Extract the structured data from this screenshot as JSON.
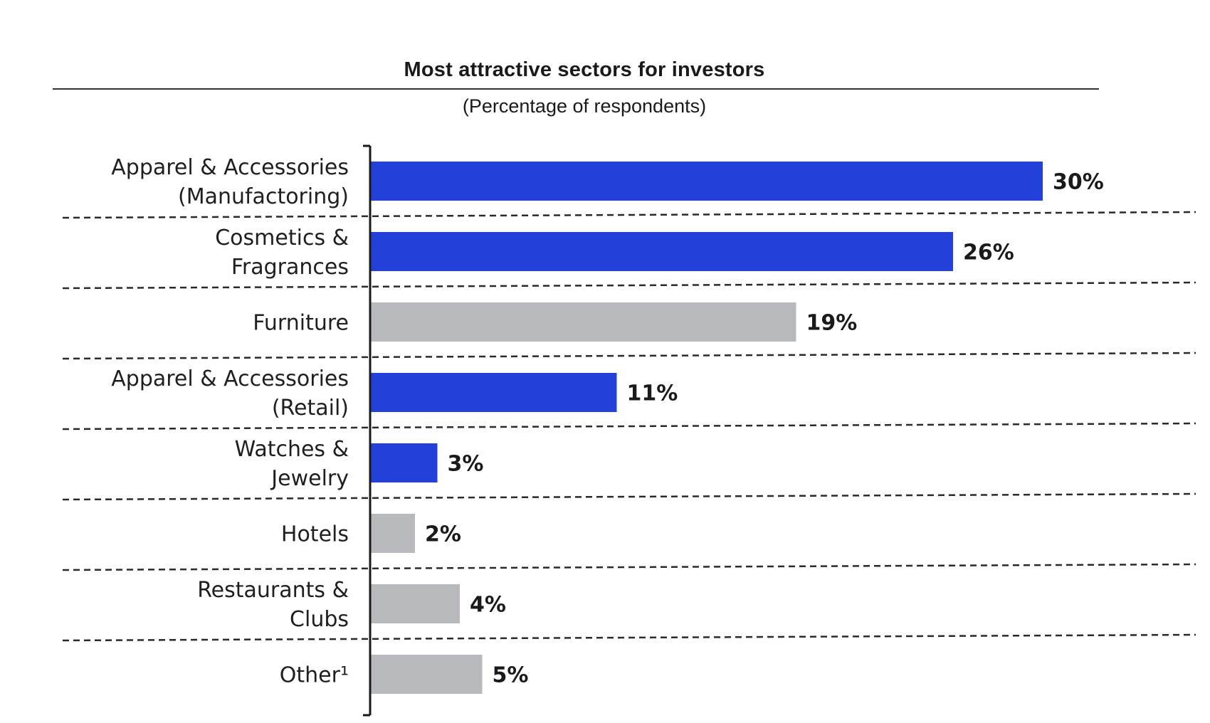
{
  "chart_data": {
    "type": "bar",
    "orientation": "horizontal",
    "title": "Most attractive sectors for investors",
    "subtitle": "(Percentage of respondents)",
    "categories": [
      [
        "Apparel & Accessories",
        "(Manufactoring)"
      ],
      [
        "Cosmetics &",
        "Fragrances"
      ],
      [
        "Furniture"
      ],
      [
        "Apparel & Accessories",
        "(Retail)"
      ],
      [
        "Watches &",
        "Jewelry"
      ],
      [
        "Hotels"
      ],
      [
        "Restaurants &",
        "Clubs"
      ],
      [
        "Other¹"
      ]
    ],
    "values": [
      30,
      26,
      19,
      11,
      3,
      2,
      4,
      5
    ],
    "value_labels": [
      "30%",
      "26%",
      "19%",
      "11%",
      "3%",
      "2%",
      "4%",
      "5%"
    ],
    "bar_colors": [
      "#2340d8",
      "#2340d8",
      "#b8b9bd",
      "#2340d8",
      "#2340d8",
      "#b8b9bd",
      "#b8b9bd",
      "#b8b9bd"
    ],
    "xlim": [
      0,
      30
    ],
    "grid": "dashed separators between rows",
    "legend": "none"
  }
}
